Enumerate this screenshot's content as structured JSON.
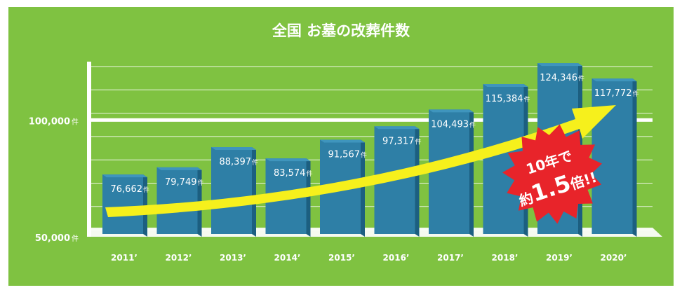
{
  "chart_data": {
    "type": "bar",
    "title": "全国 お墓の改葬件数",
    "categories": [
      "2011’",
      "2012’",
      "2013’",
      "2014’",
      "2015’",
      "2016’",
      "2017’",
      "2018’",
      "2019’",
      "2020’"
    ],
    "values": [
      76662,
      79749,
      88397,
      83574,
      91567,
      97317,
      104493,
      115384,
      124346,
      117772
    ],
    "value_labels": [
      "76,662",
      "79,749",
      "88,397",
      "83,574",
      "91,567",
      "97,317",
      "104,493",
      "115,384",
      "124,346",
      "117,772"
    ],
    "unit": "件",
    "ylim": [
      50000,
      125000
    ],
    "y_ticks": [
      {
        "value": 100000,
        "label": "100,000"
      },
      {
        "value": 50000,
        "label": "50,000"
      }
    ],
    "grid": true,
    "colors": {
      "background": "#7fc241",
      "plot": "#ffffff",
      "bar_front": "#2e7fa6",
      "bar_side": "#1c5f80",
      "arrow": "#f6f01c",
      "badge": "#e8242a"
    }
  },
  "badge": {
    "line1": "10年で",
    "prefix": "約",
    "number": "1.5",
    "suffix": "倍!!"
  }
}
